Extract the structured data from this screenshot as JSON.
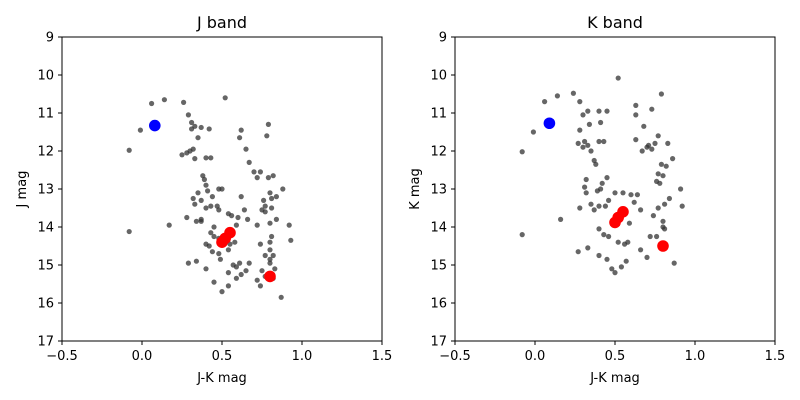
{
  "chart_data": [
    {
      "type": "scatter",
      "title": "J band",
      "xlabel": "J-K mag",
      "ylabel": "J mag",
      "xlim": [
        -0.5,
        1.5
      ],
      "ylim": [
        17,
        9
      ],
      "y_inverted": true,
      "xticks": [
        "−0.5",
        "0.0",
        "0.5",
        "1.0",
        "1.5"
      ],
      "yticks": [
        "9",
        "10",
        "11",
        "12",
        "13",
        "14",
        "15",
        "16",
        "17"
      ],
      "grid": false,
      "series": [
        {
          "color": "#333333",
          "alpha": 0.75,
          "marker": "small-circle",
          "points": [
            [
              0.06,
              10.75
            ],
            [
              0.14,
              10.65
            ],
            [
              -0.01,
              11.45
            ],
            [
              -0.08,
              11.98
            ],
            [
              -0.08,
              14.12
            ],
            [
              0.17,
              13.95
            ],
            [
              0.26,
              10.72
            ],
            [
              0.29,
              11.05
            ],
            [
              0.31,
              11.25
            ],
            [
              0.33,
              11.35
            ],
            [
              0.31,
              11.42
            ],
            [
              0.37,
              11.38
            ],
            [
              0.35,
              11.65
            ],
            [
              0.42,
              11.42
            ],
            [
              0.28,
              12.05
            ],
            [
              0.25,
              12.1
            ],
            [
              0.3,
              12.0
            ],
            [
              0.33,
              12.2
            ],
            [
              0.32,
              11.95
            ],
            [
              0.4,
              12.18
            ],
            [
              0.43,
              12.18
            ],
            [
              0.52,
              10.6
            ],
            [
              0.62,
              11.45
            ],
            [
              0.61,
              11.65
            ],
            [
              0.79,
              11.3
            ],
            [
              0.78,
              11.6
            ],
            [
              0.65,
              11.95
            ],
            [
              0.67,
              12.3
            ],
            [
              0.7,
              12.55
            ],
            [
              0.74,
              12.55
            ],
            [
              0.72,
              12.7
            ],
            [
              0.79,
              12.7
            ],
            [
              0.82,
              12.65
            ],
            [
              0.88,
              13.0
            ],
            [
              0.8,
              13.1
            ],
            [
              0.81,
              13.25
            ],
            [
              0.84,
              13.2
            ],
            [
              0.76,
              13.3
            ],
            [
              0.77,
              13.45
            ],
            [
              0.81,
              13.5
            ],
            [
              0.77,
              13.6
            ],
            [
              0.75,
              13.55
            ],
            [
              0.84,
              13.8
            ],
            [
              0.8,
              13.9
            ],
            [
              0.72,
              13.95
            ],
            [
              0.92,
              13.95
            ],
            [
              0.93,
              14.35
            ],
            [
              0.81,
              14.25
            ],
            [
              0.8,
              14.4
            ],
            [
              0.74,
              14.45
            ],
            [
              0.8,
              14.6
            ],
            [
              0.77,
              14.75
            ],
            [
              0.82,
              14.75
            ],
            [
              0.8,
              14.85
            ],
            [
              0.8,
              14.95
            ],
            [
              0.83,
              15.1
            ],
            [
              0.75,
              15.15
            ],
            [
              0.77,
              15.3
            ],
            [
              0.82,
              15.35
            ],
            [
              0.72,
              15.4
            ],
            [
              0.74,
              15.55
            ],
            [
              0.87,
              15.85
            ],
            [
              0.38,
              12.65
            ],
            [
              0.39,
              12.75
            ],
            [
              0.4,
              12.9
            ],
            [
              0.41,
              13.05
            ],
            [
              0.35,
              13.1
            ],
            [
              0.37,
              13.3
            ],
            [
              0.32,
              13.25
            ],
            [
              0.33,
              13.4
            ],
            [
              0.4,
              13.5
            ],
            [
              0.43,
              13.45
            ],
            [
              0.44,
              13.2
            ],
            [
              0.48,
              13.0
            ],
            [
              0.5,
              13.0
            ],
            [
              0.47,
              13.45
            ],
            [
              0.48,
              13.55
            ],
            [
              0.54,
              13.65
            ],
            [
              0.56,
              13.7
            ],
            [
              0.62,
              13.2
            ],
            [
              0.64,
              13.55
            ],
            [
              0.66,
              13.8
            ],
            [
              0.6,
              13.75
            ],
            [
              0.59,
              13.95
            ],
            [
              0.28,
              13.75
            ],
            [
              0.34,
              13.85
            ],
            [
              0.37,
              13.85
            ],
            [
              0.37,
              13.8
            ],
            [
              0.45,
              14.0
            ],
            [
              0.43,
              14.15
            ],
            [
              0.4,
              14.45
            ],
            [
              0.42,
              14.5
            ],
            [
              0.45,
              14.25
            ],
            [
              0.48,
              14.3
            ],
            [
              0.55,
              14.45
            ],
            [
              0.58,
              14.4
            ],
            [
              0.54,
              14.6
            ],
            [
              0.48,
              14.7
            ],
            [
              0.29,
              14.95
            ],
            [
              0.34,
              14.9
            ],
            [
              0.44,
              14.65
            ],
            [
              0.49,
              14.85
            ],
            [
              0.57,
              15.0
            ],
            [
              0.59,
              15.05
            ],
            [
              0.61,
              14.95
            ],
            [
              0.67,
              14.95
            ],
            [
              0.4,
              15.1
            ],
            [
              0.45,
              15.45
            ],
            [
              0.5,
              15.7
            ],
            [
              0.54,
              15.55
            ],
            [
              0.54,
              15.2
            ],
            [
              0.59,
              15.35
            ],
            [
              0.62,
              15.25
            ],
            [
              0.65,
              15.15
            ]
          ]
        },
        {
          "color": "#0000ff",
          "marker": "large-circle",
          "points": [
            [
              0.08,
              11.33
            ]
          ]
        },
        {
          "color": "#ff0000",
          "marker": "large-circle",
          "points": [
            [
              0.55,
              14.15
            ],
            [
              0.52,
              14.3
            ],
            [
              0.5,
              14.4
            ],
            [
              0.8,
              15.3
            ]
          ]
        }
      ]
    },
    {
      "type": "scatter",
      "title": "K band",
      "xlabel": "J-K mag",
      "ylabel": "K mag",
      "xlim": [
        -0.5,
        1.5
      ],
      "ylim": [
        17,
        9
      ],
      "y_inverted": true,
      "xticks": [
        "−0.5",
        "0.0",
        "0.5",
        "1.0",
        "1.5"
      ],
      "yticks": [
        "9",
        "10",
        "11",
        "12",
        "13",
        "14",
        "15",
        "16",
        "17"
      ],
      "grid": false,
      "series": [
        {
          "color": "#333333",
          "alpha": 0.75,
          "marker": "small-circle",
          "points": [
            [
              0.06,
              10.7
            ],
            [
              0.14,
              10.55
            ],
            [
              -0.01,
              11.5
            ],
            [
              -0.08,
              12.02
            ],
            [
              -0.08,
              14.2
            ],
            [
              0.16,
              13.8
            ],
            [
              0.52,
              10.08
            ],
            [
              0.24,
              10.48
            ],
            [
              0.28,
              10.7
            ],
            [
              0.3,
              11.05
            ],
            [
              0.33,
              10.95
            ],
            [
              0.34,
              11.3
            ],
            [
              0.4,
              10.95
            ],
            [
              0.45,
              10.95
            ],
            [
              0.41,
              11.25
            ],
            [
              0.28,
              11.45
            ],
            [
              0.31,
              11.75
            ],
            [
              0.27,
              11.8
            ],
            [
              0.3,
              11.9
            ],
            [
              0.33,
              11.85
            ],
            [
              0.4,
              11.75
            ],
            [
              0.43,
              11.75
            ],
            [
              0.35,
              12.0
            ],
            [
              0.37,
              12.25
            ],
            [
              0.38,
              12.35
            ],
            [
              0.32,
              12.75
            ],
            [
              0.31,
              12.95
            ],
            [
              0.32,
              13.1
            ],
            [
              0.39,
              13.05
            ],
            [
              0.42,
              12.85
            ],
            [
              0.45,
              12.7
            ],
            [
              0.41,
              13.0
            ],
            [
              0.46,
              13.3
            ],
            [
              0.5,
              13.1
            ],
            [
              0.35,
              13.4
            ],
            [
              0.37,
              13.55
            ],
            [
              0.4,
              13.45
            ],
            [
              0.28,
              13.5
            ],
            [
              0.44,
              13.45
            ],
            [
              0.55,
              13.1
            ],
            [
              0.6,
              13.15
            ],
            [
              0.64,
              13.15
            ],
            [
              0.62,
              13.35
            ],
            [
              0.66,
              13.55
            ],
            [
              0.59,
              13.9
            ],
            [
              0.4,
              14.05
            ],
            [
              0.43,
              14.2
            ],
            [
              0.46,
              14.25
            ],
            [
              0.49,
              13.95
            ],
            [
              0.52,
              14.4
            ],
            [
              0.56,
              14.45
            ],
            [
              0.58,
              14.4
            ],
            [
              0.27,
              14.65
            ],
            [
              0.33,
              14.55
            ],
            [
              0.4,
              14.75
            ],
            [
              0.45,
              14.85
            ],
            [
              0.48,
              15.1
            ],
            [
              0.5,
              15.2
            ],
            [
              0.54,
              15.05
            ],
            [
              0.57,
              14.9
            ],
            [
              0.66,
              14.6
            ],
            [
              0.7,
              14.8
            ],
            [
              0.63,
              10.8
            ],
            [
              0.63,
              11.05
            ],
            [
              0.73,
              10.9
            ],
            [
              0.79,
              10.5
            ],
            [
              0.68,
              11.35
            ],
            [
              0.77,
              11.6
            ],
            [
              0.71,
              11.85
            ],
            [
              0.73,
              11.95
            ],
            [
              0.75,
              11.8
            ],
            [
              0.83,
              11.8
            ],
            [
              0.86,
              12.2
            ],
            [
              0.79,
              12.35
            ],
            [
              0.82,
              12.4
            ],
            [
              0.77,
              12.6
            ],
            [
              0.8,
              12.65
            ],
            [
              0.76,
              12.8
            ],
            [
              0.78,
              12.85
            ],
            [
              0.91,
              13.0
            ],
            [
              0.84,
              13.25
            ],
            [
              0.81,
              13.4
            ],
            [
              0.77,
              13.5
            ],
            [
              0.74,
              13.7
            ],
            [
              0.8,
              13.85
            ],
            [
              0.8,
              14.0
            ],
            [
              0.81,
              14.05
            ],
            [
              0.76,
              14.25
            ],
            [
              0.72,
              14.25
            ],
            [
              0.87,
              14.95
            ],
            [
              0.92,
              13.45
            ],
            [
              0.63,
              11.7
            ],
            [
              0.67,
              12.0
            ],
            [
              0.7,
              11.9
            ]
          ]
        },
        {
          "color": "#0000ff",
          "marker": "large-circle",
          "points": [
            [
              0.09,
              11.27
            ]
          ]
        },
        {
          "color": "#ff0000",
          "marker": "large-circle",
          "points": [
            [
              0.55,
              13.6
            ],
            [
              0.52,
              13.75
            ],
            [
              0.5,
              13.88
            ],
            [
              0.8,
              14.5
            ]
          ]
        }
      ]
    }
  ]
}
